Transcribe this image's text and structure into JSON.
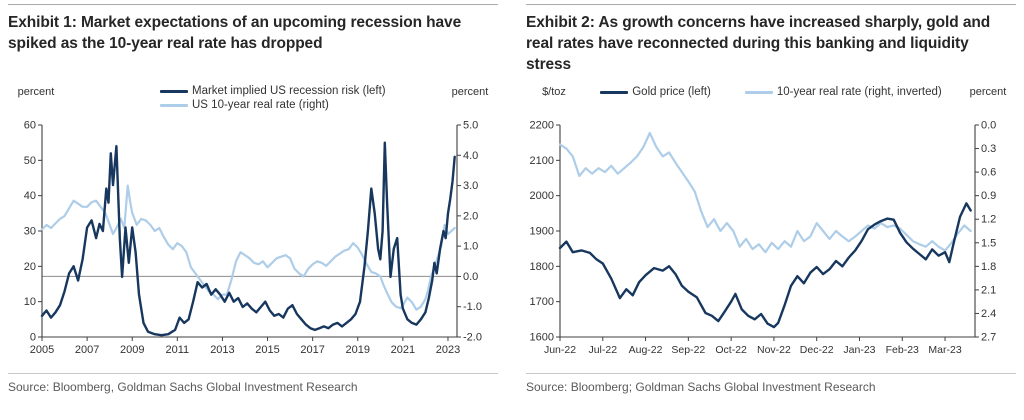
{
  "styles": {
    "navy": "#17375e",
    "light_blue": "#aecde8",
    "title_color": "#262626",
    "source_color": "#5a5a5a",
    "axis_color": "#3f3f3f",
    "refline_color": "#8c8c8c"
  },
  "exhibits": [
    {
      "title": "Exhibit 1: Market expectations of an upcoming recession have spiked as the 10-year real rate has dropped",
      "source": "Source: Bloomberg, Goldman Sachs Global Investment Research"
    },
    {
      "title": "Exhibit 2: As growth concerns have increased sharply, gold and real rates have reconnected during this banking and liquidity stress",
      "source": "Source: Bloomberg; Goldman Sachs Global Investment Research"
    }
  ],
  "chart_data": [
    {
      "type": "line",
      "title": "Market implied US recession risk vs US 10-year real rate, 2005-2023",
      "legend_layout": "stack",
      "x_min": 2005,
      "x_max": 2023.4,
      "x_axis": {
        "tick_values": [
          2005,
          2007,
          2009,
          2011,
          2013,
          2015,
          2017,
          2019,
          2021,
          2023
        ],
        "tick_labels": [
          "2005",
          "2007",
          "2009",
          "2011",
          "2013",
          "2015",
          "2017",
          "2019",
          "2021",
          "2023"
        ],
        "label_size": 11
      },
      "left_axis": {
        "unit": "percent",
        "min": 0,
        "max": 60,
        "decimals": 0,
        "tick_values": [
          0,
          10,
          20,
          30,
          40,
          50,
          60
        ],
        "inverted": false
      },
      "right_axis": {
        "unit": "percent",
        "min": -2.0,
        "max": 5.0,
        "decimals": 1,
        "tick_values": [
          -2,
          -1,
          0,
          1,
          2,
          3,
          4,
          5
        ],
        "inverted": false
      },
      "refline": {
        "axis": "right",
        "value": 0
      },
      "series": [
        {
          "name": "Market implied US recession risk (left)",
          "axis": "left",
          "color": "#17375e",
          "width": 2.4,
          "x": [
            2005.0,
            2005.2,
            2005.4,
            2005.6,
            2005.8,
            2006.0,
            2006.2,
            2006.4,
            2006.6,
            2006.8,
            2007.0,
            2007.2,
            2007.4,
            2007.55,
            2007.7,
            2007.85,
            2007.95,
            2008.05,
            2008.15,
            2008.3,
            2008.45,
            2008.55,
            2008.7,
            2008.85,
            2009.0,
            2009.15,
            2009.3,
            2009.5,
            2009.7,
            2010.0,
            2010.3,
            2010.6,
            2010.9,
            2011.1,
            2011.3,
            2011.5,
            2011.7,
            2011.9,
            2012.1,
            2012.3,
            2012.5,
            2012.7,
            2012.9,
            2013.1,
            2013.3,
            2013.5,
            2013.7,
            2013.9,
            2014.1,
            2014.3,
            2014.5,
            2014.7,
            2014.9,
            2015.1,
            2015.3,
            2015.5,
            2015.7,
            2015.9,
            2016.1,
            2016.3,
            2016.5,
            2016.7,
            2016.9,
            2017.1,
            2017.3,
            2017.5,
            2017.7,
            2017.9,
            2018.1,
            2018.3,
            2018.5,
            2018.7,
            2018.9,
            2019.1,
            2019.3,
            2019.45,
            2019.6,
            2019.75,
            2019.9,
            2020.0,
            2020.1,
            2020.2,
            2020.3,
            2020.45,
            2020.6,
            2020.75,
            2020.9,
            2021.0,
            2021.2,
            2021.4,
            2021.6,
            2021.8,
            2022.0,
            2022.15,
            2022.3,
            2022.4,
            2022.5,
            2022.65,
            2022.8,
            2022.9,
            2023.0,
            2023.1,
            2023.2,
            2023.3
          ],
          "y": [
            6,
            7.5,
            5.5,
            7,
            9,
            13,
            18,
            20,
            16,
            22,
            31,
            33,
            28,
            32,
            30,
            42,
            38,
            52,
            43,
            54,
            28,
            17,
            31,
            21,
            31,
            24,
            12,
            4,
            1.5,
            0.8,
            0.5,
            0.8,
            2,
            5.5,
            4,
            5,
            10,
            15.5,
            14,
            15,
            12,
            13.5,
            12,
            10,
            12.5,
            10,
            11,
            8.5,
            9.5,
            8,
            7,
            8.5,
            10,
            7.5,
            6,
            6.5,
            5.5,
            8,
            9,
            6.5,
            5,
            3.5,
            2.5,
            2,
            2.5,
            3,
            2.5,
            3.5,
            4,
            3,
            4,
            5,
            6.5,
            10,
            20,
            30,
            42,
            35,
            25,
            22,
            30,
            55,
            38,
            17,
            25,
            28,
            12,
            8,
            5,
            4,
            3.5,
            5,
            7,
            11,
            16,
            21,
            18,
            25,
            30,
            28,
            35,
            39,
            44,
            51
          ]
        },
        {
          "name": "US 10-year real rate (right)",
          "axis": "right",
          "color": "#aecde8",
          "width": 2.2,
          "x": [
            2005.0,
            2005.2,
            2005.4,
            2005.6,
            2005.8,
            2006.0,
            2006.2,
            2006.4,
            2006.6,
            2006.8,
            2007.0,
            2007.2,
            2007.4,
            2007.6,
            2007.8,
            2008.0,
            2008.15,
            2008.3,
            2008.5,
            2008.65,
            2008.8,
            2008.9,
            2009.0,
            2009.2,
            2009.4,
            2009.6,
            2009.8,
            2010.0,
            2010.2,
            2010.4,
            2010.6,
            2010.8,
            2011.0,
            2011.2,
            2011.4,
            2011.6,
            2011.8,
            2012.0,
            2012.2,
            2012.4,
            2012.6,
            2012.8,
            2013.0,
            2013.2,
            2013.4,
            2013.6,
            2013.8,
            2014.0,
            2014.2,
            2014.4,
            2014.6,
            2014.8,
            2015.0,
            2015.2,
            2015.4,
            2015.6,
            2015.8,
            2016.0,
            2016.2,
            2016.4,
            2016.6,
            2016.8,
            2017.0,
            2017.2,
            2017.4,
            2017.6,
            2017.8,
            2018.0,
            2018.2,
            2018.4,
            2018.6,
            2018.8,
            2019.0,
            2019.2,
            2019.4,
            2019.6,
            2019.8,
            2020.0,
            2020.15,
            2020.3,
            2020.5,
            2020.7,
            2020.9,
            2021.0,
            2021.2,
            2021.4,
            2021.6,
            2021.8,
            2022.0,
            2022.1,
            2022.25,
            2022.4,
            2022.55,
            2022.7,
            2022.85,
            2023.0,
            2023.15,
            2023.3
          ],
          "y": [
            1.55,
            1.7,
            1.6,
            1.75,
            1.9,
            2.0,
            2.25,
            2.5,
            2.4,
            2.3,
            2.3,
            2.45,
            2.5,
            2.3,
            2.1,
            1.7,
            1.4,
            1.6,
            1.9,
            1.6,
            3.0,
            2.5,
            2.1,
            1.7,
            1.9,
            1.85,
            1.7,
            1.5,
            1.6,
            1.3,
            1.05,
            0.9,
            1.1,
            1.0,
            0.8,
            0.3,
            0.1,
            -0.1,
            -0.3,
            -0.5,
            -0.6,
            -0.75,
            -0.6,
            -0.6,
            -0.1,
            0.5,
            0.8,
            0.7,
            0.6,
            0.45,
            0.4,
            0.5,
            0.3,
            0.45,
            0.6,
            0.65,
            0.7,
            0.6,
            0.25,
            0.1,
            0.0,
            0.25,
            0.4,
            0.5,
            0.45,
            0.35,
            0.5,
            0.65,
            0.75,
            0.85,
            0.9,
            1.1,
            0.95,
            0.7,
            0.4,
            0.15,
            0.1,
            0.0,
            -0.3,
            -0.55,
            -0.85,
            -1.0,
            -1.05,
            -0.95,
            -0.7,
            -0.85,
            -1.1,
            -1.0,
            -0.75,
            -0.5,
            0.0,
            0.3,
            0.65,
            1.0,
            1.7,
            1.4,
            1.5,
            1.6
          ]
        }
      ]
    },
    {
      "type": "line",
      "title": "Gold price vs 10-year real rate (inverted), Jun-22 to Mar-23",
      "legend_layout": "row",
      "x_min": 0,
      "x_max": 9.7,
      "x_axis": {
        "tick_values": [
          0,
          1,
          2,
          3,
          4,
          5,
          6,
          7,
          8,
          9
        ],
        "tick_labels": [
          "Jun-22",
          "Jul-22",
          "Aug-22",
          "Sep-22",
          "Oct-22",
          "Nov-22",
          "Dec-22",
          "Jan-23",
          "Feb-23",
          "Mar-23"
        ],
        "label_size": 10.5
      },
      "left_axis": {
        "unit": "$/toz",
        "min": 1600,
        "max": 2200,
        "decimals": 0,
        "tick_values": [
          1600,
          1700,
          1800,
          1900,
          2000,
          2100,
          2200
        ],
        "inverted": false
      },
      "right_axis": {
        "unit": "percent",
        "min": 0.0,
        "max": 2.7,
        "decimals": 1,
        "tick_values": [
          0.0,
          0.3,
          0.6,
          0.9,
          1.2,
          1.5,
          1.8,
          2.1,
          2.4,
          2.7
        ],
        "inverted": true
      },
      "refline": null,
      "series": [
        {
          "name": "Gold price (left)",
          "axis": "left",
          "color": "#17375e",
          "width": 2.4,
          "x": [
            0,
            0.15,
            0.3,
            0.5,
            0.7,
            0.85,
            1.0,
            1.2,
            1.4,
            1.55,
            1.7,
            1.85,
            2.0,
            2.2,
            2.4,
            2.55,
            2.7,
            2.85,
            3.0,
            3.2,
            3.4,
            3.55,
            3.7,
            3.85,
            4.0,
            4.1,
            4.25,
            4.4,
            4.55,
            4.7,
            4.85,
            5.0,
            5.1,
            5.25,
            5.4,
            5.55,
            5.7,
            5.85,
            6.0,
            6.15,
            6.3,
            6.45,
            6.6,
            6.75,
            6.9,
            7.05,
            7.2,
            7.35,
            7.5,
            7.65,
            7.8,
            7.95,
            8.1,
            8.25,
            8.4,
            8.55,
            8.7,
            8.85,
            9.0,
            9.1,
            9.2,
            9.35,
            9.5,
            9.6
          ],
          "y": [
            1852,
            1870,
            1840,
            1845,
            1838,
            1820,
            1808,
            1765,
            1710,
            1735,
            1718,
            1755,
            1775,
            1795,
            1788,
            1800,
            1778,
            1745,
            1728,
            1712,
            1668,
            1660,
            1645,
            1672,
            1700,
            1722,
            1678,
            1660,
            1650,
            1665,
            1638,
            1628,
            1640,
            1690,
            1745,
            1772,
            1752,
            1782,
            1798,
            1778,
            1792,
            1815,
            1800,
            1825,
            1845,
            1872,
            1905,
            1918,
            1928,
            1935,
            1932,
            1895,
            1868,
            1850,
            1835,
            1820,
            1848,
            1830,
            1840,
            1812,
            1865,
            1940,
            1978,
            1958
          ]
        },
        {
          "name": "10-year real rate (right, inverted)",
          "axis": "right",
          "color": "#aecde8",
          "width": 2.2,
          "x": [
            0,
            0.15,
            0.3,
            0.45,
            0.6,
            0.75,
            0.9,
            1.05,
            1.2,
            1.35,
            1.5,
            1.65,
            1.8,
            1.95,
            2.1,
            2.25,
            2.4,
            2.55,
            2.7,
            2.85,
            3.0,
            3.15,
            3.3,
            3.45,
            3.6,
            3.75,
            3.9,
            4.05,
            4.2,
            4.35,
            4.5,
            4.65,
            4.8,
            4.95,
            5.1,
            5.25,
            5.4,
            5.55,
            5.7,
            5.85,
            6.0,
            6.15,
            6.3,
            6.45,
            6.6,
            6.75,
            6.9,
            7.05,
            7.2,
            7.35,
            7.5,
            7.65,
            7.8,
            7.95,
            8.1,
            8.25,
            8.4,
            8.55,
            8.7,
            8.85,
            9.0,
            9.15,
            9.3,
            9.45,
            9.6
          ],
          "y": [
            0.25,
            0.3,
            0.4,
            0.65,
            0.55,
            0.62,
            0.55,
            0.6,
            0.52,
            0.62,
            0.55,
            0.48,
            0.4,
            0.28,
            0.1,
            0.28,
            0.4,
            0.35,
            0.48,
            0.6,
            0.72,
            0.85,
            1.1,
            1.3,
            1.2,
            1.35,
            1.25,
            1.35,
            1.55,
            1.45,
            1.58,
            1.52,
            1.62,
            1.5,
            1.58,
            1.48,
            1.55,
            1.35,
            1.48,
            1.42,
            1.25,
            1.35,
            1.45,
            1.35,
            1.42,
            1.48,
            1.42,
            1.35,
            1.28,
            1.32,
            1.25,
            1.3,
            1.28,
            1.32,
            1.4,
            1.48,
            1.52,
            1.55,
            1.48,
            1.55,
            1.6,
            1.5,
            1.38,
            1.28,
            1.35
          ]
        }
      ]
    }
  ]
}
